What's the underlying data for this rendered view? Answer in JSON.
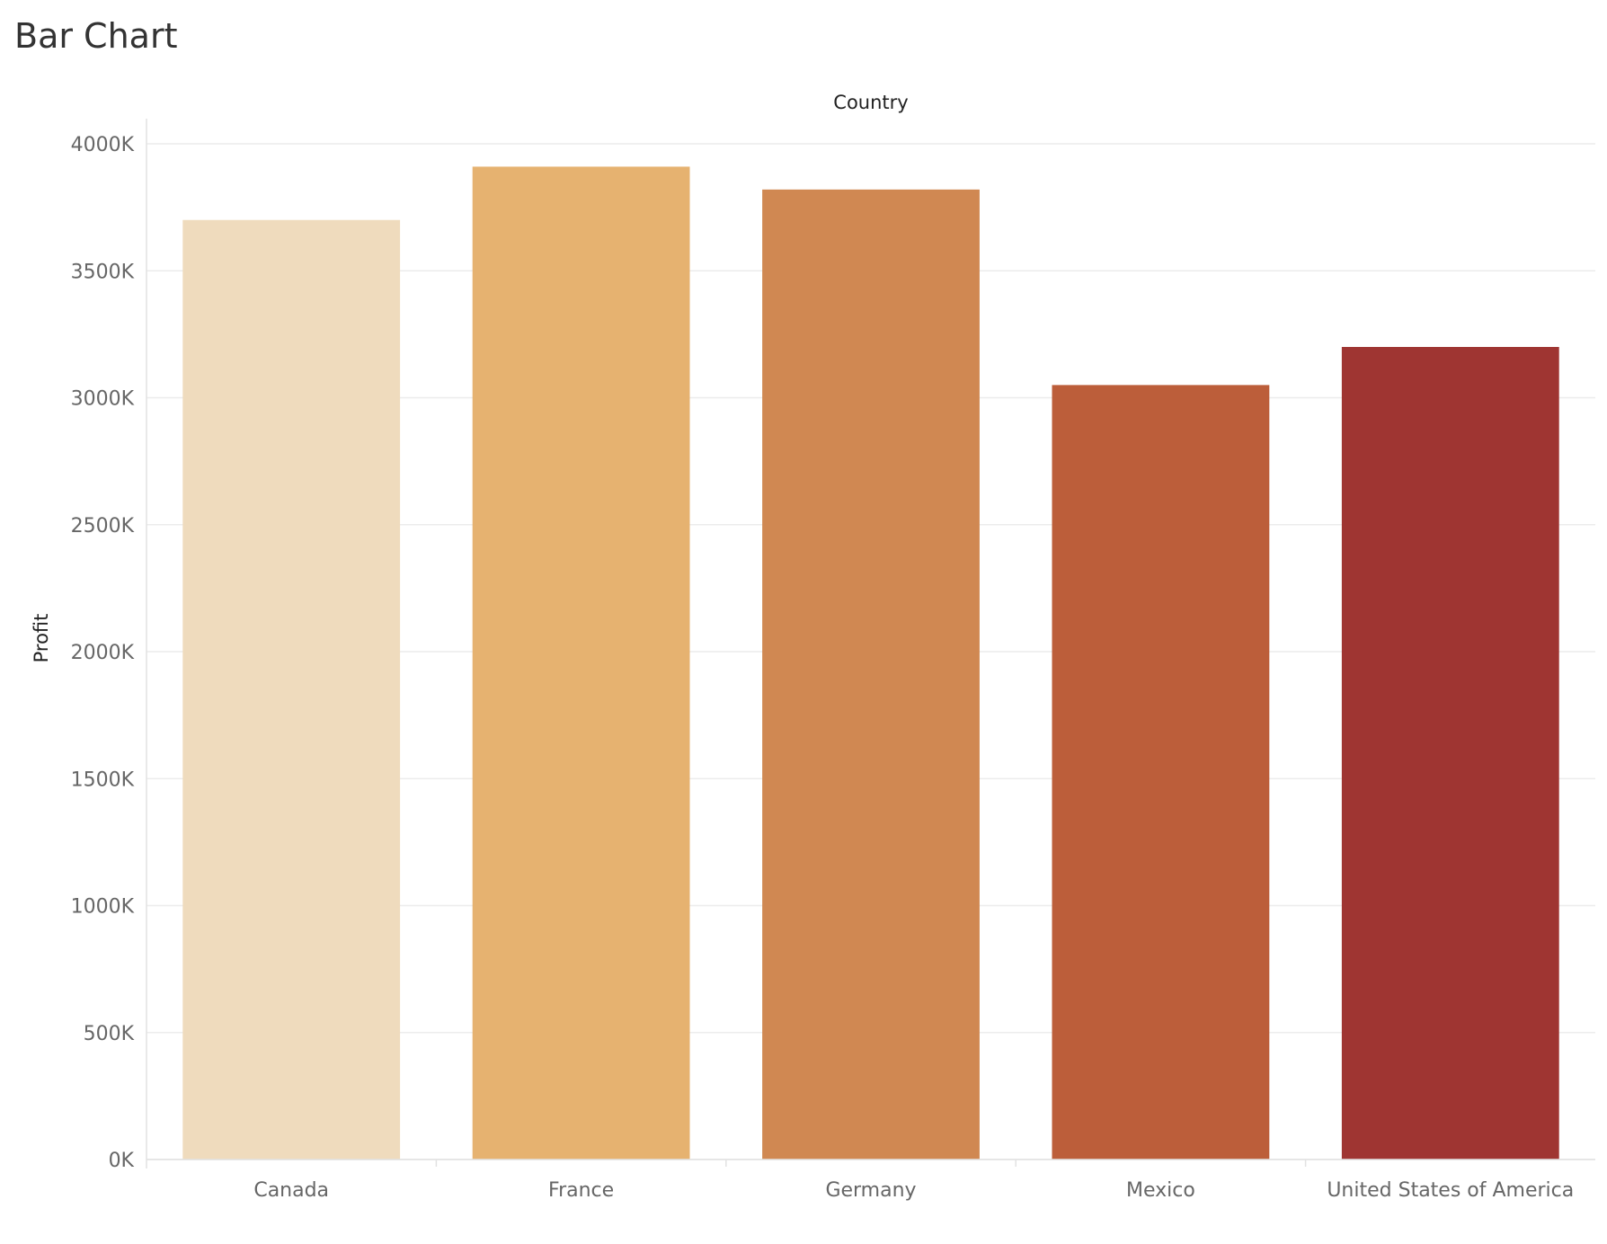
{
  "page": {
    "title": "Bar Chart"
  },
  "chart_data": {
    "type": "bar",
    "title": "Bar Chart",
    "xlabel": "Country",
    "ylabel": "Profit",
    "categories": [
      "Canada",
      "France",
      "Germany",
      "Mexico",
      "United States of America"
    ],
    "values": [
      3700000,
      3910000,
      3820000,
      3050000,
      3200000
    ],
    "colors": [
      "#efdbbd",
      "#e6b270",
      "#d08852",
      "#bc5e3a",
      "#9f3532"
    ],
    "ylim": [
      0,
      4000000
    ],
    "yticks": [
      0,
      500000,
      1000000,
      1500000,
      2000000,
      2500000,
      3000000,
      3500000,
      4000000
    ],
    "ytick_labels": [
      "0K",
      "500K",
      "1000K",
      "1500K",
      "2000K",
      "2500K",
      "3000K",
      "3500K",
      "4000K"
    ],
    "grid": true,
    "legend": "none",
    "xlabel_position": "top"
  }
}
